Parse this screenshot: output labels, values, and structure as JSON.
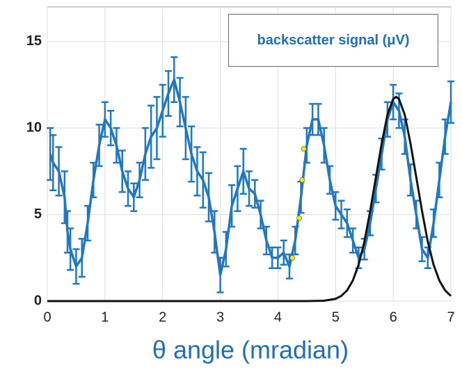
{
  "chart_data": {
    "type": "line",
    "xlabel": "θ angle (mradian)",
    "legend_text": "backscatter signal (μV)",
    "xlim": [
      0,
      7
    ],
    "ylim": [
      0,
      17
    ],
    "xticks": [
      0,
      1,
      2,
      3,
      4,
      5,
      6,
      7
    ],
    "yticks": [
      0,
      5,
      10,
      15
    ],
    "grid": true,
    "series": [
      {
        "type": "errorbar",
        "color": "#1f78c1",
        "x": [
          0.05,
          0.1,
          0.2,
          0.3,
          0.35,
          0.4,
          0.5,
          0.6,
          0.7,
          0.8,
          0.9,
          1.0,
          1.1,
          1.2,
          1.3,
          1.4,
          1.5,
          1.6,
          1.7,
          1.8,
          1.9,
          2.0,
          2.1,
          2.2,
          2.3,
          2.4,
          2.5,
          2.6,
          2.7,
          2.8,
          2.9,
          3.0,
          3.1,
          3.2,
          3.3,
          3.4,
          3.5,
          3.6,
          3.7,
          3.8,
          3.9,
          4.0,
          4.1,
          4.2,
          4.3,
          4.4,
          4.5,
          4.6,
          4.7,
          4.8,
          4.9,
          5.0,
          5.1,
          5.2,
          5.3,
          5.4,
          5.5,
          5.6,
          5.7,
          5.8,
          5.9,
          6.0,
          6.1,
          6.2,
          6.3,
          6.4,
          6.5,
          6.6,
          6.7,
          6.8,
          6.9,
          7.0
        ],
        "values": [
          8.5,
          8,
          7.5,
          6,
          4,
          3,
          2,
          2.5,
          4.5,
          7,
          9,
          10.5,
          10,
          9,
          7.5,
          6.5,
          6,
          7,
          8.5,
          9.5,
          10,
          11,
          12,
          12.8,
          11.5,
          10,
          8.5,
          7.5,
          7,
          6,
          4,
          1.5,
          3,
          5.5,
          6.5,
          7.5,
          6.5,
          6.2,
          5,
          3.5,
          2.5,
          2.5,
          2.8,
          2,
          3.5,
          6,
          9,
          10.5,
          10.5,
          9,
          7,
          5.5,
          5,
          4.5,
          3.5,
          2.5,
          3,
          4.5,
          6.5,
          8.5,
          10.5,
          11.5,
          11,
          9.5,
          7,
          5,
          3,
          2.5,
          4.5,
          7,
          9.5,
          11.5
        ],
        "errors": [
          1.5,
          1.6,
          1.4,
          1.5,
          1.2,
          1.2,
          1,
          1.1,
          1,
          1,
          1.2,
          1,
          1,
          1,
          1.2,
          1,
          0.8,
          1,
          1.5,
          1.8,
          1.8,
          1.5,
          1.3,
          1.3,
          1.4,
          1.8,
          1.6,
          1.4,
          1.6,
          1.4,
          1.2,
          1,
          1,
          1.2,
          1.3,
          1.3,
          1,
          0.8,
          0.8,
          0.8,
          0.6,
          0.6,
          0.7,
          0.7,
          0.8,
          0.9,
          1,
          0.9,
          0.9,
          1,
          0.8,
          0.8,
          0.8,
          0.8,
          0.7,
          0.6,
          0.6,
          0.7,
          0.8,
          0.9,
          1,
          1,
          1,
          1,
          0.9,
          0.8,
          0.7,
          0.6,
          0.8,
          1,
          1,
          1.2
        ]
      },
      {
        "type": "curve",
        "color": "#111111",
        "x": [
          0,
          4.0,
          4.5,
          4.8,
          5.0,
          5.1,
          5.2,
          5.3,
          5.4,
          5.5,
          5.6,
          5.7,
          5.8,
          5.9,
          6.0,
          6.05,
          6.1,
          6.2,
          6.3,
          6.4,
          6.5,
          6.6,
          6.7,
          6.8,
          6.9,
          7.0
        ],
        "values": [
          0,
          0,
          0,
          0.02,
          0.13,
          0.3,
          0.62,
          1.19,
          2.1,
          3.43,
          5.2,
          7.16,
          9.1,
          10.77,
          11.68,
          11.8,
          11.68,
          10.77,
          9.1,
          7.16,
          5.2,
          3.43,
          2.1,
          1.19,
          0.62,
          0.3
        ]
      },
      {
        "type": "scatter",
        "color": "#f2e629",
        "x": [
          4.25,
          4.37,
          4.42,
          4.45
        ],
        "values": [
          2.5,
          4.8,
          7,
          8.8
        ]
      }
    ]
  }
}
